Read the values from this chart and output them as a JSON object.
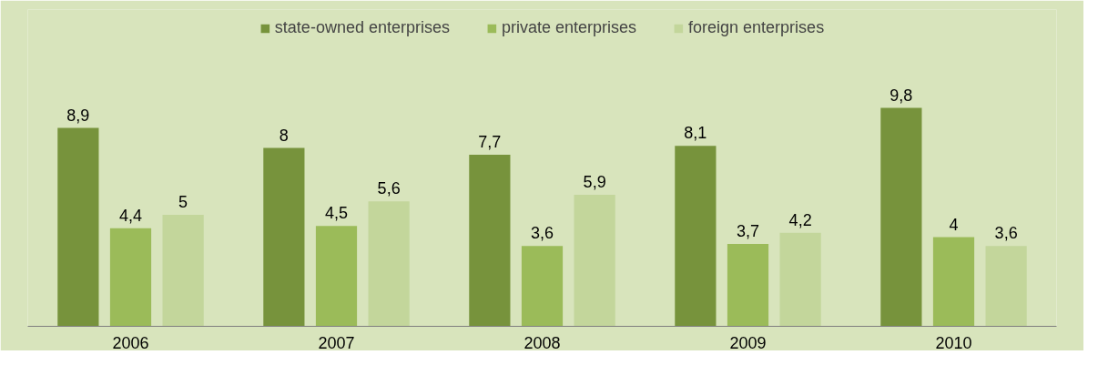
{
  "chart_data": {
    "type": "bar",
    "categories": [
      "2006",
      "2007",
      "2008",
      "2009",
      "2010"
    ],
    "series": [
      {
        "name": "state-owned enterprises",
        "color": "#77933c",
        "values": [
          8.9,
          8,
          7.7,
          8.1,
          9.8
        ],
        "value_labels": [
          "8,9",
          "8",
          "7,7",
          "8,1",
          "9,8"
        ]
      },
      {
        "name": "private enterprises",
        "color": "#9bbb59",
        "values": [
          4.4,
          4.5,
          3.6,
          3.7,
          4
        ],
        "value_labels": [
          "4,4",
          "4,5",
          "3,6",
          "3,7",
          "4"
        ]
      },
      {
        "name": "foreign enterprises",
        "color": "#c3d69b",
        "values": [
          5,
          5.6,
          5.9,
          4.2,
          3.6
        ],
        "value_labels": [
          "5",
          "5,6",
          "5,9",
          "4,2",
          "3,6"
        ]
      }
    ],
    "legend": "top"
  }
}
